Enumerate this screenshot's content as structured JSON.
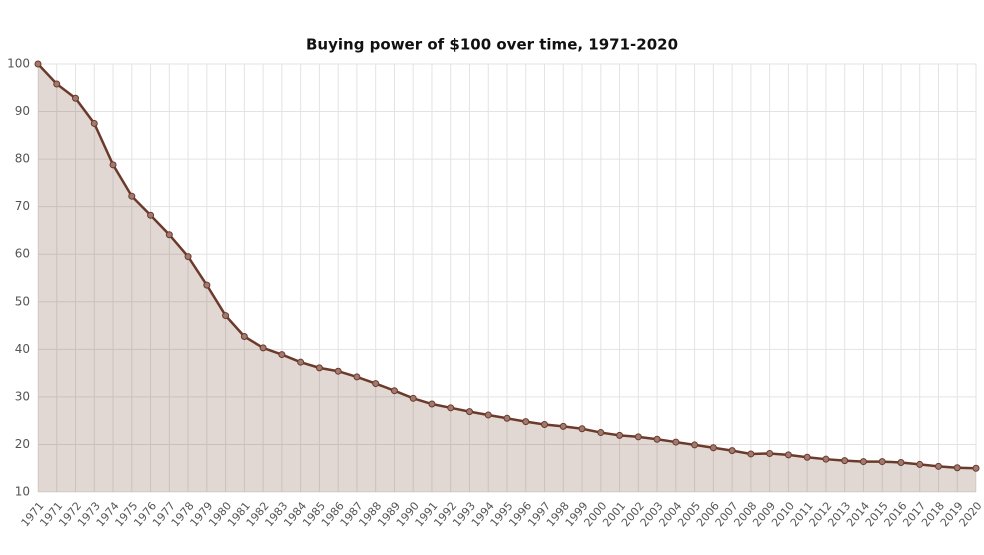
{
  "chart_data": {
    "type": "line",
    "title": "Buying power of $100 over time, 1971-2020",
    "categories": [
      "1971",
      "1971",
      "1972",
      "1973",
      "1974",
      "1975",
      "1976",
      "1977",
      "1978",
      "1979",
      "1980",
      "1981",
      "1982",
      "1983",
      "1984",
      "1985",
      "1986",
      "1987",
      "1988",
      "1989",
      "1990",
      "1991",
      "1992",
      "1993",
      "1994",
      "1995",
      "1996",
      "1997",
      "1998",
      "1999",
      "2000",
      "2001",
      "2002",
      "2003",
      "2004",
      "2005",
      "2006",
      "2007",
      "2008",
      "2009",
      "2010",
      "2011",
      "2012",
      "2013",
      "2014",
      "2015",
      "2016",
      "2017",
      "2018",
      "2019",
      "2020"
    ],
    "values": [
      100,
      95.8,
      92.8,
      87.5,
      78.8,
      72.2,
      68.2,
      64.1,
      59.5,
      53.5,
      47.1,
      42.7,
      40.3,
      38.9,
      37.3,
      36.1,
      35.4,
      34.2,
      32.8,
      31.3,
      29.7,
      28.5,
      27.7,
      26.9,
      26.2,
      25.5,
      24.8,
      24.2,
      23.8,
      23.3,
      22.5,
      21.9,
      21.6,
      21.1,
      20.5,
      19.9,
      19.3,
      18.7,
      18.0,
      18.1,
      17.8,
      17.3,
      16.9,
      16.6,
      16.4,
      16.4,
      16.2,
      15.8,
      15.4,
      15.1,
      15.0
    ],
    "color": "#6b3a2a",
    "ylim": [
      10,
      100
    ],
    "yticks": [
      10,
      20,
      30,
      40,
      50,
      60,
      70,
      80,
      90,
      100
    ],
    "grid": true
  }
}
